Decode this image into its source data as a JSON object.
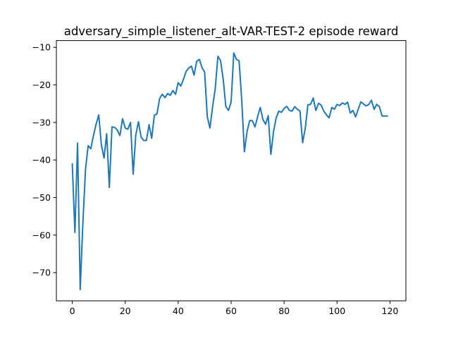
{
  "chart_data": {
    "type": "line",
    "title": "adversary_simple_listener_alt-VAR-TEST-2 episode reward",
    "xlabel": "",
    "ylabel": "",
    "xlim": [
      -6,
      126
    ],
    "ylim": [
      -77.5,
      -8.2
    ],
    "x_ticks": [
      0,
      20,
      40,
      60,
      80,
      100,
      120
    ],
    "y_ticks": [
      -70,
      -60,
      -50,
      -40,
      -30,
      -20,
      -10
    ],
    "x_tick_labels": [
      "0",
      "20",
      "40",
      "60",
      "80",
      "100",
      "120"
    ],
    "y_tick_labels": [
      "−70",
      "−60",
      "−50",
      "−40",
      "−30",
      "−20",
      "−10"
    ],
    "grid": false,
    "legend": "none",
    "series": [
      {
        "color": "#1f77b4",
        "x": [
          0,
          1,
          2,
          3,
          4,
          5,
          6,
          7,
          8,
          9,
          10,
          11,
          12,
          13,
          14,
          15,
          16,
          17,
          18,
          19,
          20,
          21,
          22,
          23,
          24,
          25,
          26,
          27,
          28,
          29,
          30,
          31,
          32,
          33,
          34,
          35,
          36,
          37,
          38,
          39,
          40,
          41,
          42,
          43,
          44,
          45,
          46,
          47,
          48,
          49,
          50,
          51,
          52,
          53,
          54,
          55,
          56,
          57,
          58,
          59,
          60,
          61,
          62,
          63,
          64,
          65,
          66,
          67,
          68,
          69,
          70,
          71,
          72,
          73,
          74,
          75,
          76,
          77,
          78,
          79,
          80,
          81,
          82,
          83,
          84,
          85,
          86,
          87,
          88,
          89,
          90,
          91,
          92,
          93,
          94,
          95,
          96,
          97,
          98,
          99,
          100,
          101,
          102,
          103,
          104,
          105,
          106,
          107,
          108,
          109,
          110,
          111,
          112,
          113,
          114,
          115,
          116,
          117,
          118,
          119
        ],
        "y": [
          -41.0,
          -59.3,
          -35.5,
          -74.5,
          -57.0,
          -42.5,
          -36.2,
          -37.0,
          -33.5,
          -30.5,
          -28.0,
          -36.0,
          -39.5,
          -33.0,
          -47.3,
          -31.2,
          -31.3,
          -32.0,
          -33.5,
          -29.0,
          -31.5,
          -31.8,
          -30.0,
          -43.8,
          -33.3,
          -29.8,
          -33.9,
          -34.8,
          -34.8,
          -30.6,
          -34.2,
          -28.1,
          -27.7,
          -23.6,
          -22.5,
          -23.4,
          -22.3,
          -22.8,
          -21.5,
          -22.5,
          -19.4,
          -20.3,
          -18.5,
          -16.4,
          -15.5,
          -15.0,
          -17.4,
          -13.7,
          -13.2,
          -15.4,
          -16.6,
          -28.5,
          -31.5,
          -25.8,
          -21.0,
          -12.4,
          -13.5,
          -18.5,
          -25.8,
          -26.8,
          -24.5,
          -11.5,
          -13.2,
          -13.6,
          -24.0,
          -37.8,
          -32.5,
          -29.5,
          -29.5,
          -31.2,
          -28.5,
          -26.0,
          -29.2,
          -30.5,
          -28.2,
          -38.5,
          -32.5,
          -28.8,
          -27.0,
          -27.3,
          -26.3,
          -25.7,
          -26.8,
          -27.0,
          -25.8,
          -26.5,
          -27.0,
          -35.4,
          -31.5,
          -25.3,
          -25.2,
          -23.5,
          -26.8,
          -24.9,
          -25.4,
          -27.0,
          -28.0,
          -28.8,
          -26.0,
          -26.5,
          -25.2,
          -25.5,
          -24.8,
          -25.2,
          -24.6,
          -27.5,
          -26.8,
          -28.5,
          -26.5,
          -24.5,
          -25.1,
          -25.6,
          -25.2,
          -24.1,
          -26.5,
          -25.2,
          -25.8,
          -28.3,
          -28.3,
          -28.3
        ]
      }
    ]
  }
}
